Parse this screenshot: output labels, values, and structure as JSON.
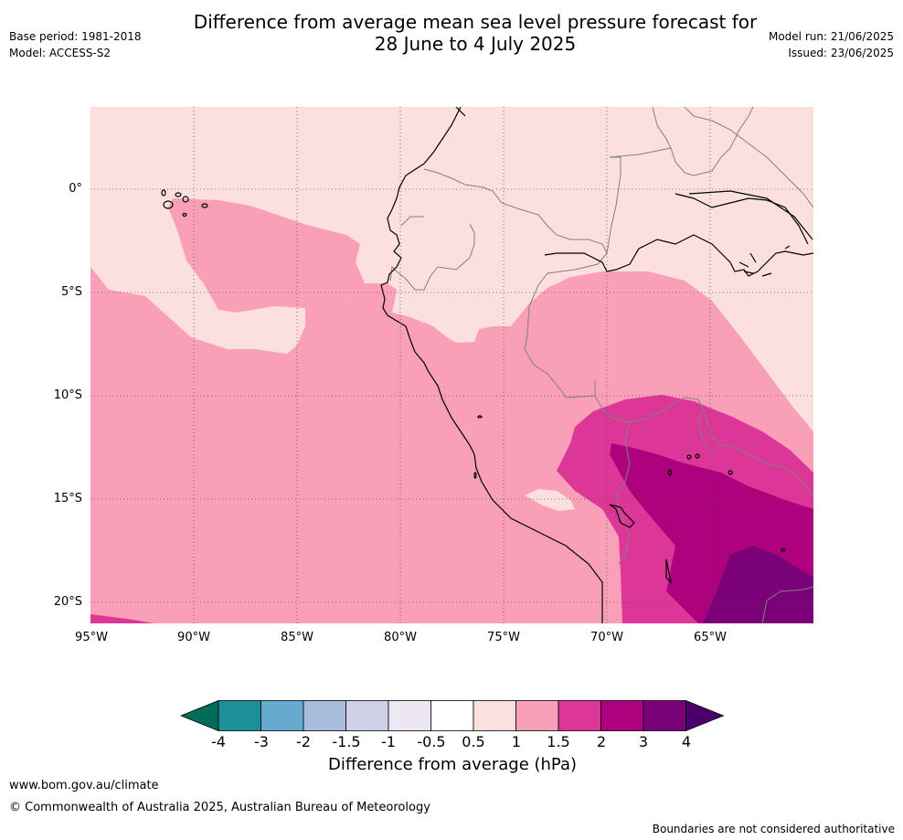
{
  "header": {
    "title_line1": "Difference from average mean sea level pressure forecast for",
    "title_line2": "28 June to 4 July 2025",
    "base_period": "Base period: 1981-2018",
    "model": "Model: ACCESS-S2",
    "model_run": "Model run: 21/06/2025",
    "issued": "Issued: 23/06/2025"
  },
  "map": {
    "lat_labels": [
      "0°",
      "5°S",
      "10°S",
      "15°S",
      "20°S"
    ],
    "lon_labels": [
      "95°W",
      "90°W",
      "85°W",
      "80°W",
      "75°W",
      "70°W",
      "65°W"
    ],
    "colors": {
      "land_outline": "#000000",
      "border": "#808080",
      "grid": "#555555",
      "c_0_5_1": "#fbe0dd",
      "c_1_1_5": "#f99fb8",
      "c_1_5_2": "#dc3699",
      "c_2_3": "#ae017e",
      "c_3_4": "#7a0177"
    }
  },
  "colorbar": {
    "label": "Difference from average (hPa)",
    "ticks": [
      "-4",
      "-3",
      "-2",
      "-1.5",
      "-1",
      "-0.5",
      "0.5",
      "1",
      "1.5",
      "2",
      "3",
      "4"
    ],
    "colors": [
      "#016c59",
      "#1c9099",
      "#67a9cf",
      "#a6bddb",
      "#d0d1e6",
      "#ece7f2",
      "#ffffff",
      "#fbe0dd",
      "#f99fb8",
      "#dc3699",
      "#ae017e",
      "#7a0177",
      "#49006a"
    ]
  },
  "footer": {
    "url": "www.bom.gov.au/climate",
    "copyright": "© Commonwealth of Australia 2025, Australian Bureau of Meteorology",
    "note": "Boundaries are not considered authoritative"
  }
}
